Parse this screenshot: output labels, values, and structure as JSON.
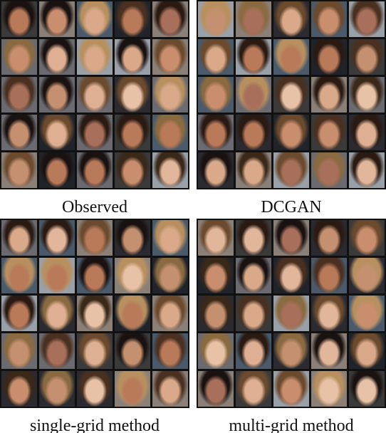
{
  "panels": [
    {
      "caption": "Observed"
    },
    {
      "caption": "DCGAN"
    },
    {
      "caption": "single-grid method"
    },
    {
      "caption": "multi-grid method"
    }
  ]
}
